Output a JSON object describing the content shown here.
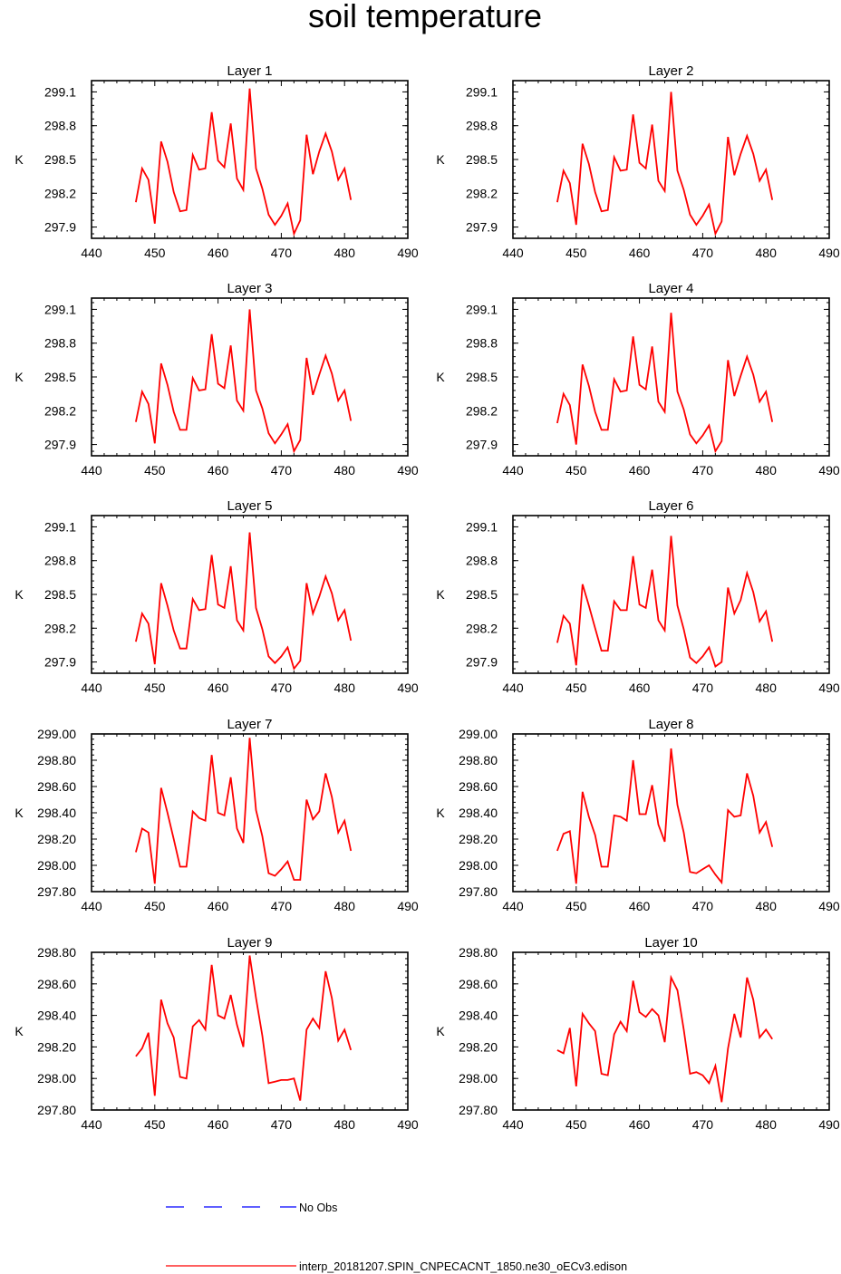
{
  "chart_data": {
    "type": "line",
    "title": "soil temperature",
    "x": [
      447,
      448,
      449,
      450,
      451,
      452,
      453,
      454,
      455,
      456,
      457,
      458,
      459,
      460,
      461,
      462,
      463,
      464,
      465,
      466,
      467,
      468,
      469,
      470,
      471,
      472,
      473,
      474,
      475,
      476,
      477,
      478,
      479,
      480,
      481
    ],
    "xlim": [
      440,
      490
    ],
    "xticks": [
      440,
      450,
      460,
      470,
      480,
      490
    ],
    "xtick_labels": [
      "440",
      "450",
      "460",
      "470",
      "480",
      "490"
    ],
    "ylabel": "K",
    "line_color": "#ff0000",
    "obs_color": "#0000ff",
    "panels": [
      {
        "title": "Layer 1",
        "ylim": [
          297.8,
          299.2
        ],
        "yticks": [
          297.9,
          298.2,
          298.5,
          298.8,
          299.1
        ],
        "ytick_labels": [
          "297.9",
          "298.2",
          "298.5",
          "298.8",
          "299.1"
        ],
        "values": [
          298.12,
          298.42,
          298.32,
          297.93,
          298.66,
          298.48,
          298.21,
          298.04,
          298.05,
          298.54,
          298.41,
          298.42,
          298.92,
          298.49,
          298.43,
          298.82,
          298.33,
          298.23,
          299.13,
          298.42,
          298.24,
          298.01,
          297.92,
          298.0,
          298.11,
          297.84,
          297.96,
          298.72,
          298.37,
          298.57,
          298.73,
          298.57,
          298.32,
          298.42,
          298.14
        ]
      },
      {
        "title": "Layer 2",
        "ylim": [
          297.8,
          299.2
        ],
        "yticks": [
          297.9,
          298.2,
          298.5,
          298.8,
          299.1
        ],
        "ytick_labels": [
          "297.9",
          "298.2",
          "298.5",
          "298.8",
          "299.1"
        ],
        "values": [
          298.12,
          298.4,
          298.29,
          297.92,
          298.64,
          298.46,
          298.21,
          298.04,
          298.05,
          298.52,
          298.4,
          298.41,
          298.9,
          298.47,
          298.42,
          298.81,
          298.31,
          298.22,
          299.1,
          298.4,
          298.23,
          298.01,
          297.92,
          298.0,
          298.1,
          297.84,
          297.95,
          298.7,
          298.36,
          298.55,
          298.71,
          298.55,
          298.31,
          298.41,
          298.14
        ]
      },
      {
        "title": "Layer 3",
        "ylim": [
          297.8,
          299.2
        ],
        "yticks": [
          297.9,
          298.2,
          298.5,
          298.8,
          299.1
        ],
        "ytick_labels": [
          "297.9",
          "298.2",
          "298.5",
          "298.8",
          "299.1"
        ],
        "values": [
          298.1,
          298.37,
          298.26,
          297.91,
          298.62,
          298.43,
          298.19,
          298.03,
          298.03,
          298.49,
          298.38,
          298.39,
          298.88,
          298.44,
          298.4,
          298.78,
          298.29,
          298.2,
          299.1,
          298.38,
          298.22,
          298.0,
          297.91,
          297.99,
          298.08,
          297.84,
          297.94,
          298.67,
          298.34,
          298.52,
          298.69,
          298.53,
          298.29,
          298.38,
          298.11
        ]
      },
      {
        "title": "Layer 4",
        "ylim": [
          297.8,
          299.2
        ],
        "yticks": [
          297.9,
          298.2,
          298.5,
          298.8,
          299.1
        ],
        "ytick_labels": [
          "297.9",
          "298.2",
          "298.5",
          "298.8",
          "299.1"
        ],
        "values": [
          298.09,
          298.35,
          298.25,
          297.9,
          298.61,
          298.42,
          298.19,
          298.03,
          298.03,
          298.48,
          298.37,
          298.38,
          298.86,
          298.43,
          298.39,
          298.77,
          298.28,
          298.19,
          299.07,
          298.37,
          298.21,
          297.99,
          297.91,
          297.98,
          298.07,
          297.84,
          297.93,
          298.65,
          298.33,
          298.51,
          298.68,
          298.52,
          298.28,
          298.37,
          298.1
        ]
      },
      {
        "title": "Layer 5",
        "ylim": [
          297.8,
          299.2
        ],
        "yticks": [
          297.9,
          298.2,
          298.5,
          298.8,
          299.1
        ],
        "ytick_labels": [
          "297.9",
          "298.2",
          "298.5",
          "298.8",
          "299.1"
        ],
        "values": [
          298.08,
          298.33,
          298.24,
          297.88,
          298.6,
          298.4,
          298.18,
          298.02,
          298.02,
          298.46,
          298.36,
          298.37,
          298.85,
          298.41,
          298.38,
          298.75,
          298.27,
          298.18,
          299.05,
          298.38,
          298.19,
          297.95,
          297.89,
          297.95,
          298.03,
          297.84,
          297.91,
          298.6,
          298.33,
          298.48,
          298.66,
          298.51,
          298.27,
          298.36,
          298.09
        ]
      },
      {
        "title": "Layer 6",
        "ylim": [
          297.8,
          299.2
        ],
        "yticks": [
          297.9,
          298.2,
          298.5,
          298.8,
          299.1
        ],
        "ytick_labels": [
          "297.9",
          "298.2",
          "298.5",
          "298.8",
          "299.1"
        ],
        "values": [
          298.07,
          298.31,
          298.24,
          297.87,
          298.59,
          298.4,
          298.2,
          298.0,
          298.0,
          298.44,
          298.36,
          298.36,
          298.84,
          298.41,
          298.38,
          298.72,
          298.27,
          298.18,
          299.02,
          298.4,
          298.19,
          297.94,
          297.89,
          297.95,
          298.03,
          297.86,
          297.9,
          298.56,
          298.33,
          298.45,
          298.69,
          298.52,
          298.26,
          298.35,
          298.08
        ]
      },
      {
        "title": "Layer 7",
        "ylim": [
          297.8,
          299.0
        ],
        "yticks": [
          297.8,
          298.0,
          298.2,
          298.4,
          298.6,
          298.8,
          299.0
        ],
        "ytick_labels": [
          "297.80",
          "298.00",
          "298.20",
          "298.40",
          "298.60",
          "298.80",
          "299.00"
        ],
        "values": [
          298.1,
          298.28,
          298.25,
          297.86,
          298.59,
          298.4,
          298.2,
          297.99,
          297.99,
          298.41,
          298.36,
          298.34,
          298.84,
          298.4,
          298.38,
          298.67,
          298.28,
          298.17,
          298.97,
          298.42,
          298.22,
          297.94,
          297.92,
          297.97,
          298.03,
          297.89,
          297.89,
          298.5,
          298.35,
          298.41,
          298.7,
          298.52,
          298.25,
          298.34,
          298.11
        ]
      },
      {
        "title": "Layer 8",
        "ylim": [
          297.8,
          299.0
        ],
        "yticks": [
          297.8,
          298.0,
          298.2,
          298.4,
          298.6,
          298.8,
          299.0
        ],
        "ytick_labels": [
          "297.80",
          "298.00",
          "298.20",
          "298.40",
          "298.60",
          "298.80",
          "299.00"
        ],
        "values": [
          298.11,
          298.24,
          298.26,
          297.86,
          298.56,
          298.37,
          298.23,
          297.99,
          297.99,
          298.38,
          298.37,
          298.34,
          298.8,
          298.39,
          298.39,
          298.61,
          298.31,
          298.18,
          298.89,
          298.46,
          298.25,
          297.95,
          297.94,
          297.97,
          298.0,
          297.93,
          297.87,
          298.42,
          298.37,
          298.38,
          298.7,
          298.53,
          298.25,
          298.33,
          298.14
        ]
      },
      {
        "title": "Layer 9",
        "ylim": [
          297.8,
          298.8
        ],
        "yticks": [
          297.8,
          298.0,
          298.2,
          298.4,
          298.6,
          298.8
        ],
        "ytick_labels": [
          "297.80",
          "298.00",
          "298.20",
          "298.40",
          "298.60",
          "298.80"
        ],
        "values": [
          298.14,
          298.19,
          298.29,
          297.89,
          298.5,
          298.35,
          298.26,
          298.01,
          298.0,
          298.33,
          298.37,
          298.31,
          298.72,
          298.4,
          298.38,
          298.53,
          298.34,
          298.2,
          298.78,
          298.51,
          298.27,
          297.97,
          297.98,
          297.99,
          297.99,
          298.0,
          297.86,
          298.31,
          298.38,
          298.32,
          298.68,
          298.51,
          298.24,
          298.31,
          298.18
        ]
      },
      {
        "title": "Layer 10",
        "ylim": [
          297.8,
          298.8
        ],
        "yticks": [
          297.8,
          298.0,
          298.2,
          298.4,
          298.6,
          298.8
        ],
        "ytick_labels": [
          "297.80",
          "298.00",
          "298.20",
          "298.40",
          "298.60",
          "298.80"
        ],
        "values": [
          298.18,
          298.16,
          298.32,
          297.95,
          298.41,
          298.35,
          298.3,
          298.03,
          298.02,
          298.28,
          298.36,
          298.3,
          298.62,
          298.42,
          298.39,
          298.44,
          298.4,
          298.23,
          298.64,
          298.56,
          298.31,
          298.03,
          298.04,
          298.02,
          297.97,
          298.08,
          297.85,
          298.19,
          298.41,
          298.26,
          298.64,
          298.5,
          298.26,
          298.31,
          298.25
        ]
      }
    ],
    "legend": {
      "position": "bottom-center",
      "entries": [
        {
          "label": "No Obs",
          "color": "#0000ff",
          "style": "dashed"
        },
        {
          "label": "interp_20181207.SPIN_CNPECACNT_1850.ne30_oECv3.edison",
          "color": "#ff0000",
          "style": "solid"
        }
      ]
    }
  }
}
